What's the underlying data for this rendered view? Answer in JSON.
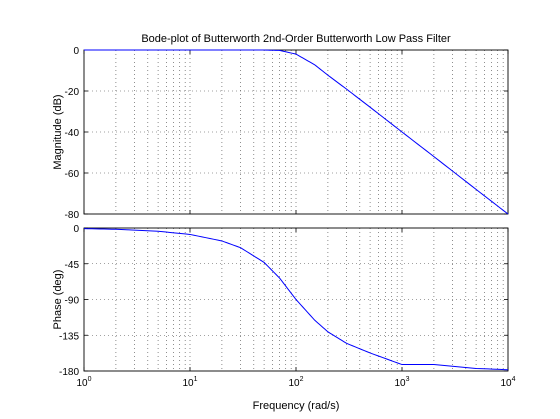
{
  "title": "Bode-plot of Butterworth 2nd-Order Butterworth Low Pass Filter",
  "xlabel": "Frequency (rad/s)",
  "chart_data": [
    {
      "type": "line",
      "name": "magnitude",
      "ylabel": "Magnitude (dB)",
      "xscale": "log",
      "xlim": [
        1,
        10000
      ],
      "ylim": [
        -80,
        0
      ],
      "yticks": [
        0,
        -20,
        -40,
        -60,
        -80
      ],
      "grid": true,
      "line_color": "#0000ff",
      "x": [
        1,
        10,
        30,
        50,
        70,
        100,
        150,
        200,
        300,
        500,
        1000,
        2000,
        5000,
        10000
      ],
      "values": [
        0,
        0,
        0,
        -0.03,
        -0.2,
        -2,
        -7.2,
        -12.3,
        -19.1,
        -27.9,
        -40,
        -52,
        -68,
        -80
      ]
    },
    {
      "type": "line",
      "name": "phase",
      "ylabel": "Phase (deg)",
      "xscale": "log",
      "xlim": [
        1,
        10000
      ],
      "ylim": [
        -180,
        0
      ],
      "yticks": [
        0,
        -45,
        -90,
        -135,
        -180
      ],
      "grid": true,
      "line_color": "#0000ff",
      "x": [
        1,
        2,
        5,
        10,
        20,
        30,
        50,
        70,
        100,
        150,
        200,
        300,
        500,
        1000,
        2000,
        5000,
        10000
      ],
      "values": [
        -0.8,
        -1.6,
        -4.1,
        -8.1,
        -16.3,
        -24.8,
        -43.3,
        -63,
        -90,
        -116,
        -130.7,
        -145.2,
        -157.3,
        -171.9,
        -171.9,
        -176.8,
        -178.4
      ]
    }
  ],
  "xticks": [
    {
      "base": "10",
      "exp": "0"
    },
    {
      "base": "10",
      "exp": "1"
    },
    {
      "base": "10",
      "exp": "2"
    },
    {
      "base": "10",
      "exp": "3"
    },
    {
      "base": "10",
      "exp": "4"
    }
  ]
}
